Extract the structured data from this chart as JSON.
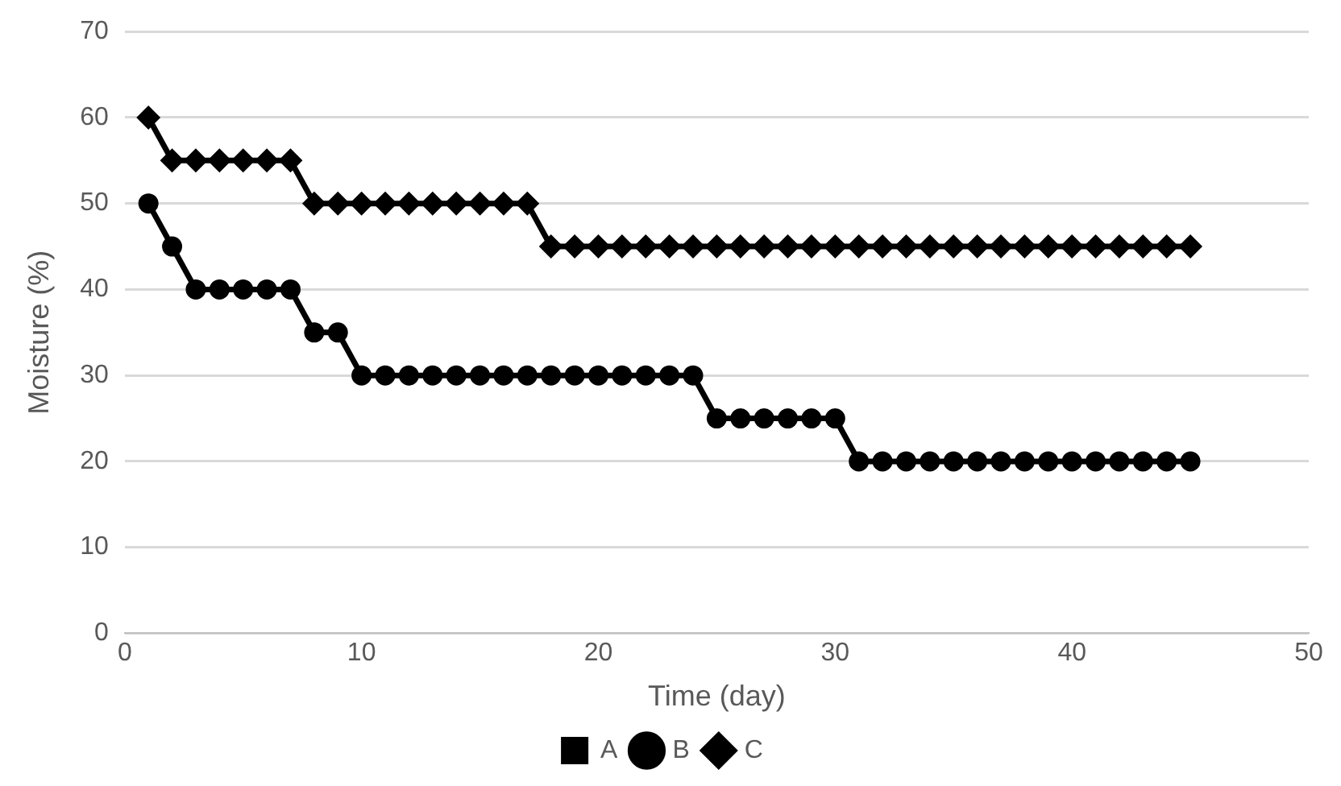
{
  "chart_data": {
    "type": "line",
    "xlabel": "Time (day)",
    "ylabel": "Moisture (%)",
    "x": [
      1,
      2,
      3,
      4,
      5,
      6,
      7,
      8,
      9,
      10,
      11,
      12,
      13,
      14,
      15,
      16,
      17,
      18,
      19,
      20,
      21,
      22,
      23,
      24,
      25,
      26,
      27,
      28,
      29,
      30,
      31,
      32,
      33,
      34,
      35,
      36,
      37,
      38,
      39,
      40,
      41,
      42,
      43,
      44,
      45
    ],
    "series": [
      {
        "name": "A",
        "color": "#000000",
        "marker": "square",
        "values": [
          null,
          null,
          null,
          null,
          null,
          null,
          null,
          null,
          null,
          null,
          null,
          null,
          null,
          null,
          null,
          null,
          null,
          null,
          null,
          null,
          null,
          null,
          null,
          null,
          null,
          null,
          null,
          null,
          null,
          null,
          null,
          null,
          null,
          null,
          null,
          null,
          null,
          null,
          null,
          null,
          null,
          null,
          null,
          null,
          null
        ]
      },
      {
        "name": "B",
        "color": "#000000",
        "marker": "circle",
        "values": [
          50,
          45,
          40,
          40,
          40,
          40,
          40,
          35,
          35,
          30,
          30,
          30,
          30,
          30,
          30,
          30,
          30,
          30,
          30,
          30,
          30,
          30,
          30,
          30,
          25,
          25,
          25,
          25,
          25,
          25,
          20,
          20,
          20,
          20,
          20,
          20,
          20,
          20,
          20,
          20,
          20,
          20,
          20,
          20,
          20
        ]
      },
      {
        "name": "C",
        "color": "#000000",
        "marker": "diamond",
        "values": [
          60,
          55,
          55,
          55,
          55,
          55,
          55,
          50,
          50,
          50,
          50,
          50,
          50,
          50,
          50,
          50,
          50,
          45,
          45,
          45,
          45,
          45,
          45,
          45,
          45,
          45,
          45,
          45,
          45,
          45,
          45,
          45,
          45,
          45,
          45,
          45,
          45,
          45,
          45,
          45,
          45,
          45,
          45,
          45,
          45
        ]
      }
    ],
    "xlim": [
      0,
      50
    ],
    "xticks": [
      0,
      10,
      20,
      30,
      40,
      50
    ],
    "ylim": [
      0,
      70
    ],
    "yticks": [
      0,
      10,
      20,
      30,
      40,
      50,
      60,
      70
    ],
    "grid": "y",
    "legend": "bottom",
    "line_style": "solid"
  }
}
